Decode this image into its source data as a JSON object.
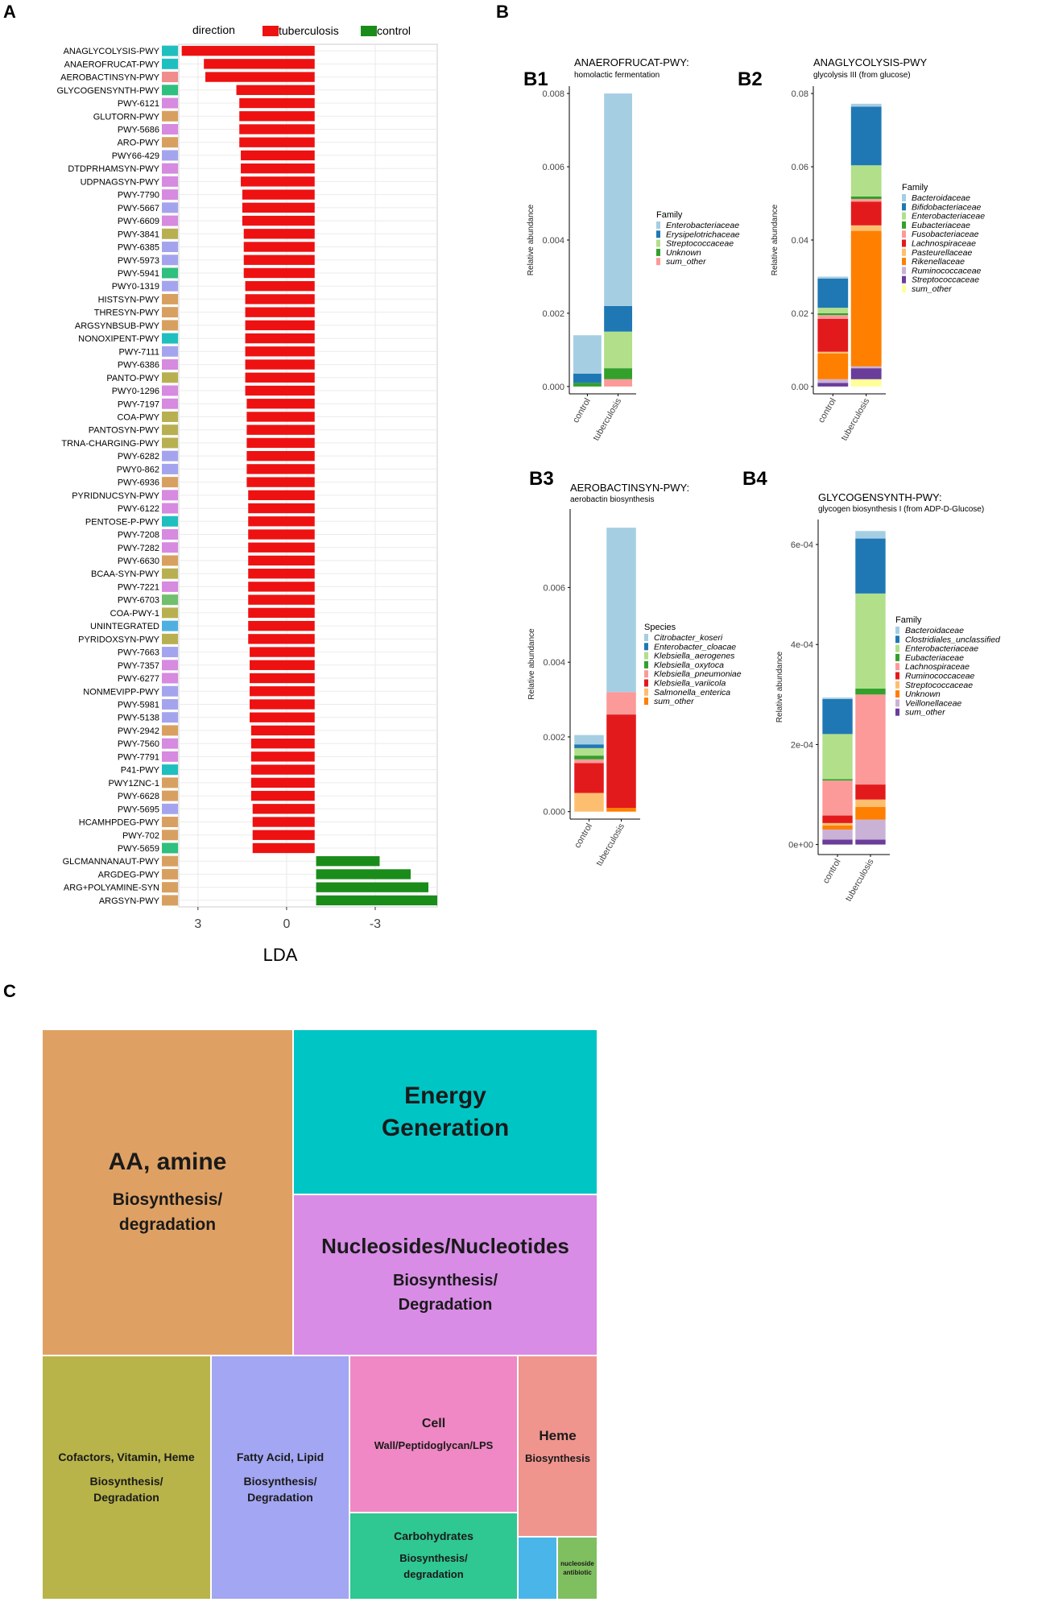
{
  "panel_labels": {
    "a": "A",
    "b": "B",
    "c": "C",
    "b1": "B1",
    "b2": "B2",
    "b3": "B3",
    "b4": "B4"
  },
  "colors": {
    "tuberculosis": "#ee1111",
    "control": "#1a8c1a",
    "grid": "#e6e6e6",
    "panel_bg": "#ffffff"
  },
  "chart_data": [
    {
      "id": "A",
      "type": "bar",
      "orientation": "horizontal",
      "legend": {
        "title": "direction",
        "items": [
          {
            "name": "tuberculosis",
            "color": "#ee1111"
          },
          {
            "name": "control",
            "color": "#1a8c1a"
          }
        ]
      },
      "xlabel": "LDA",
      "xticks": [
        {
          "value": 3,
          "label": "3"
        },
        {
          "value": 0,
          "label": "0"
        },
        {
          "value": -3,
          "label": "-3"
        }
      ],
      "xlim": [
        3.65,
        -5.1
      ],
      "categories": [
        "ANAGLYCOLYSIS-PWY",
        "ANAEROFRUCAT-PWY",
        "AEROBACTINSYN-PWY",
        "GLYCOGENSYNTH-PWY",
        "PWY-6121",
        "GLUTORN-PWY",
        "PWY-5686",
        "ARO-PWY",
        "PWY66-429",
        "DTDPRHAMSYN-PWY",
        "UDPNAGSYN-PWY",
        "PWY-7790",
        "PWY-5667",
        "PWY-6609",
        "PWY-3841",
        "PWY-6385",
        "PWY-5973",
        "PWY-5941",
        "PWY0-1319",
        "HISTSYN-PWY",
        "THRESYN-PWY",
        "ARGSYNBSUB-PWY",
        "NONOXIPENT-PWY",
        "PWY-7111",
        "PWY-6386",
        "PANTO-PWY",
        "PWY0-1296",
        "PWY-7197",
        "COA-PWY",
        "PANTOSYN-PWY",
        "TRNA-CHARGING-PWY",
        "PWY-6282",
        "PWY0-862",
        "PWY-6936",
        "PYRIDNUCSYN-PWY",
        "PWY-6122",
        "PENTOSE-P-PWY",
        "PWY-7208",
        "PWY-7282",
        "PWY-6630",
        "BCAA-SYN-PWY",
        "PWY-7221",
        "PWY-6703",
        "COA-PWY-1",
        "UNINTEGRATED",
        "PYRIDOXSYN-PWY",
        "PWY-7663",
        "PWY-7357",
        "PWY-6277",
        "NONMEVIPP-PWY",
        "PWY-5981",
        "PWY-5138",
        "PWY-2942",
        "PWY-7560",
        "PWY-7791",
        "P41-PWY",
        "PWY1ZNC-1",
        "PWY-6628",
        "PWY-5695",
        "HCAMHPDEG-PWY",
        "PWY-702",
        "PWY-5659",
        "GLCMANNANAUT-PWY",
        "ARGDEG-PWY",
        "ARG+POLYAMINE-SYN",
        "ARGSYN-PWY"
      ],
      "starts": [
        -0.95,
        -0.95,
        -0.95,
        -0.95,
        -0.95,
        -0.95,
        -0.95,
        -0.95,
        -0.95,
        -0.95,
        -0.95,
        -0.95,
        -0.95,
        -0.95,
        -0.95,
        -0.95,
        -0.95,
        -0.95,
        -0.95,
        -0.95,
        -0.95,
        -0.95,
        -0.95,
        -0.95,
        -0.95,
        -0.95,
        -0.95,
        -0.95,
        -0.95,
        -0.95,
        -0.95,
        -0.95,
        -0.95,
        -0.95,
        -0.95,
        -0.95,
        -0.95,
        -0.95,
        -0.95,
        -0.95,
        -0.95,
        -0.95,
        -0.95,
        -0.95,
        -0.95,
        -0.95,
        -0.95,
        -0.95,
        -0.95,
        -0.95,
        -0.95,
        -0.95,
        -0.95,
        -0.95,
        -0.95,
        -0.95,
        -0.95,
        -0.95,
        -0.95,
        -0.95,
        -0.95,
        -0.95,
        -1.0,
        -1.0,
        -1.0,
        -1.0
      ],
      "values": [
        3.55,
        2.8,
        2.75,
        1.7,
        1.6,
        1.6,
        1.6,
        1.6,
        1.55,
        1.55,
        1.55,
        1.5,
        1.5,
        1.5,
        1.45,
        1.45,
        1.45,
        1.45,
        1.4,
        1.4,
        1.4,
        1.4,
        1.4,
        1.4,
        1.4,
        1.4,
        1.4,
        1.35,
        1.35,
        1.35,
        1.35,
        1.35,
        1.35,
        1.35,
        1.3,
        1.3,
        1.3,
        1.3,
        1.3,
        1.3,
        1.3,
        1.3,
        1.3,
        1.3,
        1.3,
        1.3,
        1.25,
        1.25,
        1.25,
        1.25,
        1.25,
        1.25,
        1.2,
        1.2,
        1.2,
        1.2,
        1.2,
        1.2,
        1.15,
        1.15,
        1.15,
        1.15,
        -3.15,
        -4.2,
        -4.8,
        -5.1
      ],
      "group_colors": [
        "#1fbfbf",
        "#1fbfbf",
        "#f08c8c",
        "#2fbf7f",
        "#d68ae0",
        "#d8a060",
        "#d68ae0",
        "#d8a060",
        "#a4a4ee",
        "#d68ae0",
        "#d68ae0",
        "#d68ae0",
        "#a4a4ee",
        "#d68ae0",
        "#b8b050",
        "#a4a4ee",
        "#a4a4ee",
        "#2fbf7f",
        "#a4a4ee",
        "#d8a060",
        "#d8a060",
        "#d8a060",
        "#1fbfbf",
        "#a4a4ee",
        "#d68ae0",
        "#b8b050",
        "#d68ae0",
        "#d68ae0",
        "#b8b050",
        "#b8b050",
        "#b8b050",
        "#a4a4ee",
        "#a4a4ee",
        "#d8a060",
        "#d68ae0",
        "#d68ae0",
        "#1fbfbf",
        "#d68ae0",
        "#d68ae0",
        "#d8a060",
        "#b8b050",
        "#d68ae0",
        "#6fbf6f",
        "#b8b050",
        "#4fb0e0",
        "#b8b050",
        "#a4a4ee",
        "#d68ae0",
        "#d68ae0",
        "#a4a4ee",
        "#a4a4ee",
        "#a4a4ee",
        "#d8a060",
        "#d68ae0",
        "#d68ae0",
        "#1fbfbf",
        "#d8a060",
        "#d8a060",
        "#a4a4ee",
        "#d8a060",
        "#d8a060",
        "#2fbf7f",
        "#d8a060",
        "#d8a060",
        "#d8a060",
        "#d8a060"
      ]
    },
    {
      "id": "B1",
      "type": "bar",
      "stacked": true,
      "title": "ANAEROFRUCAT-PWY:",
      "subtitle": "homolactic fermentation",
      "ylabel": "Relative abundance",
      "ylim": [
        -0.0002,
        0.0082
      ],
      "yticks": [
        {
          "value": 0,
          "label": "0.000"
        },
        {
          "value": 0.002,
          "label": "0.002"
        },
        {
          "value": 0.004,
          "label": "0.004"
        },
        {
          "value": 0.006,
          "label": "0.006"
        },
        {
          "value": 0.008,
          "label": "0.008"
        }
      ],
      "categories": [
        "control",
        "tuberculosis"
      ],
      "legend_title": "Family",
      "series": [
        {
          "name": "Enterobacteriaceae",
          "color": "#a6cee3",
          "values": [
            0.00105,
            0.0058
          ]
        },
        {
          "name": "Erysipelotrichaceae",
          "color": "#1f78b4",
          "values": [
            0.00025,
            0.0007
          ]
        },
        {
          "name": "Streptococcaceae",
          "color": "#b2df8a",
          "values": [
            0.0,
            0.001
          ]
        },
        {
          "name": "Unknown",
          "color": "#33a02c",
          "values": [
            0.0001,
            0.0003
          ]
        },
        {
          "name": "sum_other",
          "color": "#fb9a99",
          "values": [
            0.0,
            0.0002
          ]
        }
      ]
    },
    {
      "id": "B2",
      "type": "bar",
      "stacked": true,
      "title": "ANAGLYCOLYSIS-PWY",
      "subtitle": "glycolysis III (from glucose)",
      "ylabel": "Relative abundance",
      "ylim": [
        -0.002,
        0.082
      ],
      "yticks": [
        {
          "value": 0,
          "label": "0.00"
        },
        {
          "value": 0.02,
          "label": "0.02"
        },
        {
          "value": 0.04,
          "label": "0.04"
        },
        {
          "value": 0.06,
          "label": "0.06"
        },
        {
          "value": 0.08,
          "label": "0.08"
        }
      ],
      "categories": [
        "control",
        "tuberculosis"
      ],
      "legend_title": "Family",
      "series": [
        {
          "name": "Bacteroidaceae",
          "color": "#a6cee3",
          "values": [
            0.0005,
            0.0008
          ]
        },
        {
          "name": "Bifidobacteriaceae",
          "color": "#1f78b4",
          "values": [
            0.008,
            0.016
          ]
        },
        {
          "name": "Enterobacteriaceae",
          "color": "#b2df8a",
          "values": [
            0.0015,
            0.0085
          ]
        },
        {
          "name": "Eubacteriaceae",
          "color": "#33a02c",
          "values": [
            0.0005,
            0.0007
          ]
        },
        {
          "name": "Fusobacteriaceae",
          "color": "#fb9a99",
          "values": [
            0.001,
            0.0007
          ]
        },
        {
          "name": "Lachnospiraceae",
          "color": "#e31a1c",
          "values": [
            0.009,
            0.0065
          ]
        },
        {
          "name": "Pasteurellaceae",
          "color": "#fdbf6f",
          "values": [
            0.0005,
            0.0015
          ]
        },
        {
          "name": "Rikenellaceae",
          "color": "#ff7f00",
          "values": [
            0.007,
            0.037
          ]
        },
        {
          "name": "Ruminococcaceae",
          "color": "#cab2d6",
          "values": [
            0.001,
            0.0005
          ]
        },
        {
          "name": "Streptococcaceae",
          "color": "#6a3d9a",
          "values": [
            0.001,
            0.003
          ]
        },
        {
          "name": "sum_other",
          "color": "#ffff99",
          "values": [
            0.0,
            0.002
          ]
        }
      ]
    },
    {
      "id": "B3",
      "type": "bar",
      "stacked": true,
      "title": "AEROBACTINSYN-PWY:",
      "subtitle": "aerobactin biosynthesis",
      "ylabel": "Relative abundance",
      "ylim": [
        -0.0002,
        0.0081
      ],
      "yticks": [
        {
          "value": 0,
          "label": "0.000"
        },
        {
          "value": 0.002,
          "label": "0.002"
        },
        {
          "value": 0.004,
          "label": "0.004"
        },
        {
          "value": 0.006,
          "label": "0.006"
        }
      ],
      "categories": [
        "control",
        "tuberculosis"
      ],
      "legend_title": "Species",
      "series": [
        {
          "name": "Citrobacter_koseri",
          "color": "#a6cee3",
          "values": [
            0.00025,
            0.0044
          ]
        },
        {
          "name": "Enterobacter_cloacae",
          "color": "#1f78b4",
          "values": [
            0.0001,
            0.0
          ]
        },
        {
          "name": "Klebsiella_aerogenes",
          "color": "#b2df8a",
          "values": [
            0.0002,
            0.0
          ]
        },
        {
          "name": "Klebsiella_oxytoca",
          "color": "#33a02c",
          "values": [
            0.0001,
            0.0
          ]
        },
        {
          "name": "Klebsiella_pneumoniae",
          "color": "#fb9a99",
          "values": [
            0.0001,
            0.0006
          ]
        },
        {
          "name": "Klebsiella_variicola",
          "color": "#e31a1c",
          "values": [
            0.0008,
            0.0025
          ]
        },
        {
          "name": "Salmonella_enterica",
          "color": "#fdbf6f",
          "values": [
            0.0005,
            0.0
          ]
        },
        {
          "name": "sum_other",
          "color": "#ff7f00",
          "values": [
            0.0,
            0.0001
          ]
        }
      ]
    },
    {
      "id": "B4",
      "type": "bar",
      "stacked": true,
      "title": "GLYCOGENSYNTH-PWY:",
      "subtitle": "glycogen biosynthesis I (from ADP-D-Glucose)",
      "ylabel": "Relative abundance",
      "ylim": [
        -2e-05,
        0.00065
      ],
      "yticks": [
        {
          "value": 0,
          "label": "0e+00"
        },
        {
          "value": 0.0002,
          "label": "2e-04"
        },
        {
          "value": 0.0004,
          "label": "4e-04"
        },
        {
          "value": 0.0006,
          "label": "6e-04"
        }
      ],
      "categories": [
        "control",
        "tuberculosis"
      ],
      "legend_title": "Family",
      "series": [
        {
          "name": "Bacteroidaceae",
          "color": "#a6cee3",
          "values": [
            3e-06,
            1.5e-05
          ]
        },
        {
          "name": "Clostridiales_unclassified",
          "color": "#1f78b4",
          "values": [
            7e-05,
            0.00011
          ]
        },
        {
          "name": "Enterobacteriaceae",
          "color": "#b2df8a",
          "values": [
            9e-05,
            0.00019
          ]
        },
        {
          "name": "Eubacteriaceae",
          "color": "#33a02c",
          "values": [
            3e-06,
            1.2e-05
          ]
        },
        {
          "name": "Lachnospiraceae",
          "color": "#fb9a99",
          "values": [
            7e-05,
            0.00018
          ]
        },
        {
          "name": "Ruminococcaceae",
          "color": "#e31a1c",
          "values": [
            1.5e-05,
            3e-05
          ]
        },
        {
          "name": "Streptococcaceae",
          "color": "#fdbf6f",
          "values": [
            5e-06,
            1.5e-05
          ]
        },
        {
          "name": "Unknown",
          "color": "#ff7f00",
          "values": [
            8e-06,
            2.5e-05
          ]
        },
        {
          "name": "Veillonellaceae",
          "color": "#cab2d6",
          "values": [
            2e-05,
            4e-05
          ]
        },
        {
          "name": "sum_other",
          "color": "#6a3d9a",
          "values": [
            1e-05,
            1e-05
          ]
        }
      ]
    },
    {
      "id": "C",
      "type": "treemap",
      "items": [
        {
          "key": "aa",
          "title": "AA, amine",
          "subtitle": "Biosynthesis/ degradation",
          "color": "#dfa163"
        },
        {
          "key": "energy",
          "title": "Energy Generation",
          "subtitle": "",
          "color": "#00c5c5"
        },
        {
          "key": "nucleo",
          "title": "Nucleosides/Nucleotides",
          "subtitle": "Biosynthesis/ Degradation",
          "color": "#d88ce6"
        },
        {
          "key": "cofactors",
          "title": "Cofactors, Vitamin, Heme",
          "subtitle": "Biosynthesis/ Degradation",
          "color": "#b8b44a"
        },
        {
          "key": "fatty",
          "title": "Fatty Acid, Lipid",
          "subtitle": "Biosynthesis/ Degradation",
          "color": "#a3a6f2"
        },
        {
          "key": "cell",
          "title": "Cell",
          "subtitle": "Wall/Peptidoglycan/LPS",
          "color": "#ef88c4"
        },
        {
          "key": "heme",
          "title": "Heme",
          "subtitle": "Biosynthesis",
          "color": "#f0948e"
        },
        {
          "key": "carbo",
          "title": "Carbohydrates",
          "subtitle": "Biosynthesis/ degradation",
          "color": "#2fc792"
        },
        {
          "key": "small1",
          "title": "",
          "subtitle": "",
          "color": "#4ab5e8"
        },
        {
          "key": "small2",
          "title": "nucleoside antibiotic",
          "subtitle": "",
          "color": "#7fbf5f"
        }
      ]
    }
  ]
}
